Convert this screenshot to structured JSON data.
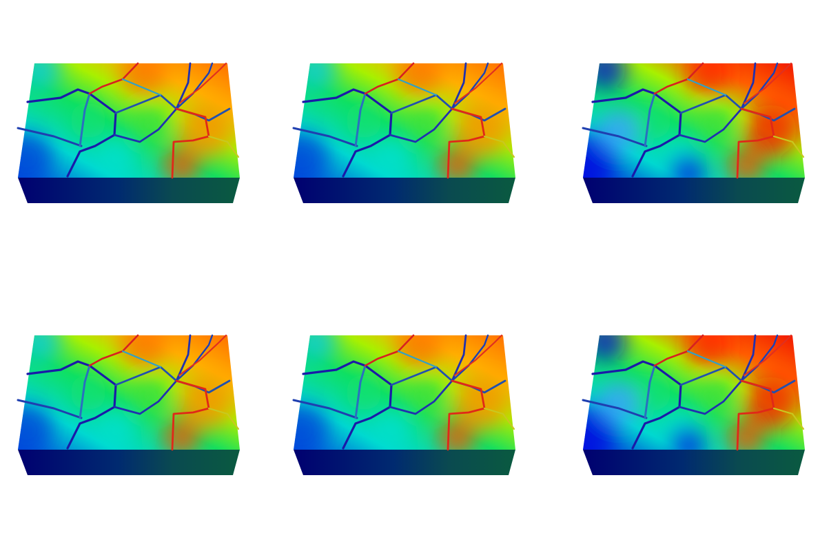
{
  "figure": {
    "background": "#ffffff",
    "colormap": [
      "#00008b",
      "#0000ff",
      "#00c8ff",
      "#00ff80",
      "#c8ff00",
      "#ff8000",
      "#ff0000"
    ],
    "panels": [
      {
        "id": "panel-1",
        "row": 1,
        "col": 1,
        "field_intensity": 0.45
      },
      {
        "id": "panel-2",
        "row": 1,
        "col": 2,
        "field_intensity": 0.5
      },
      {
        "id": "panel-3",
        "row": 1,
        "col": 3,
        "field_intensity": 0.8
      },
      {
        "id": "panel-4",
        "row": 2,
        "col": 1,
        "field_intensity": 0.35
      },
      {
        "id": "panel-5",
        "row": 2,
        "col": 2,
        "field_intensity": 0.4
      },
      {
        "id": "panel-6",
        "row": 2,
        "col": 3,
        "field_intensity": 0.75
      }
    ]
  }
}
